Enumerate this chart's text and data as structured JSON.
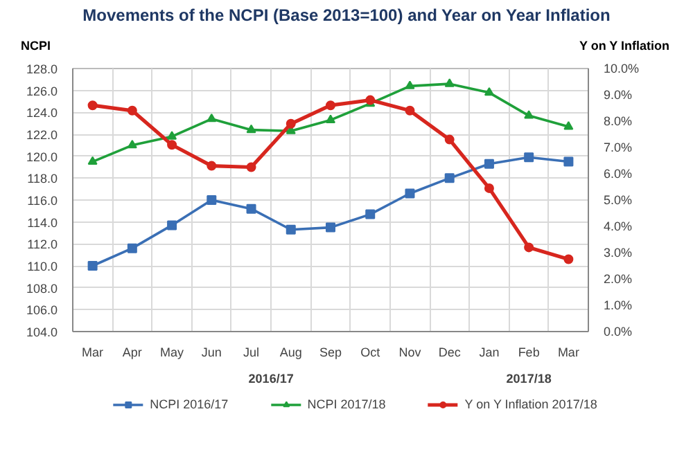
{
  "chart_data": {
    "type": "line",
    "title": "Movements of the NCPI (Base 2013=100) and Year on Year Inflation",
    "ylabel": "NCPI",
    "y2label": "Y on Y Inflation",
    "categories": [
      "Mar",
      "Apr",
      "May",
      "Jun",
      "Jul",
      "Aug",
      "Sep",
      "Oct",
      "Nov",
      "Dec",
      "Jan",
      "Feb",
      "Mar"
    ],
    "series": [
      {
        "name": "NCPI 2016/17",
        "color": "#3a6fb5",
        "marker": "square",
        "values": [
          110.0,
          111.6,
          113.7,
          116.0,
          115.2,
          113.3,
          113.5,
          114.7,
          116.6,
          118.0,
          119.3,
          119.9,
          119.5
        ]
      },
      {
        "name": "NCPI 2017/18",
        "color": "#1fa03a",
        "marker": "triangle",
        "values": [
          119.5,
          121.0,
          121.8,
          123.4,
          122.4,
          122.3,
          123.3,
          124.8,
          126.4,
          126.6,
          125.8,
          123.7,
          122.7
        ]
      },
      {
        "name": "Y on Y Inflation 2017/18",
        "color": "#d7261e",
        "marker": "circle",
        "axis": "y2",
        "values": [
          8.6,
          8.4,
          7.1,
          6.3,
          6.25,
          7.9,
          8.6,
          8.8,
          8.4,
          7.3,
          5.45,
          3.2,
          2.75
        ]
      }
    ],
    "ylim": [
      104,
      128
    ],
    "yticks": [
      {
        "value": 104,
        "label": "104.0"
      },
      {
        "value": 106,
        "label": "106.0"
      },
      {
        "value": 108,
        "label": "108.0"
      },
      {
        "value": 110,
        "label": "110.0"
      },
      {
        "value": 112,
        "label": "112.0"
      },
      {
        "value": 114,
        "label": "114.0"
      },
      {
        "value": 116,
        "label": "116.0"
      },
      {
        "value": 118,
        "label": "118.0"
      },
      {
        "value": 120,
        "label": "120.0"
      },
      {
        "value": 122,
        "label": "122.0"
      },
      {
        "value": 124,
        "label": "124.0"
      },
      {
        "value": 126,
        "label": "126.0"
      },
      {
        "value": 128,
        "label": "128.0"
      }
    ],
    "y2lim": [
      0,
      10
    ],
    "y2ticks": [
      {
        "value": 0,
        "label": "0.0%"
      },
      {
        "value": 1,
        "label": "1.0%"
      },
      {
        "value": 2,
        "label": "2.0%"
      },
      {
        "value": 3,
        "label": "3.0%"
      },
      {
        "value": 4,
        "label": "4.0%"
      },
      {
        "value": 5,
        "label": "5.0%"
      },
      {
        "value": 6,
        "label": "6.0%"
      },
      {
        "value": 7,
        "label": "7.0%"
      },
      {
        "value": 8,
        "label": "8.0%"
      },
      {
        "value": 9,
        "label": "9.0%"
      },
      {
        "value": 10,
        "label": "10.0%"
      }
    ],
    "annotations": [
      "2016/17",
      "2017/18"
    ],
    "grid": true,
    "legend": "bottom",
    "line_style": "solid"
  }
}
